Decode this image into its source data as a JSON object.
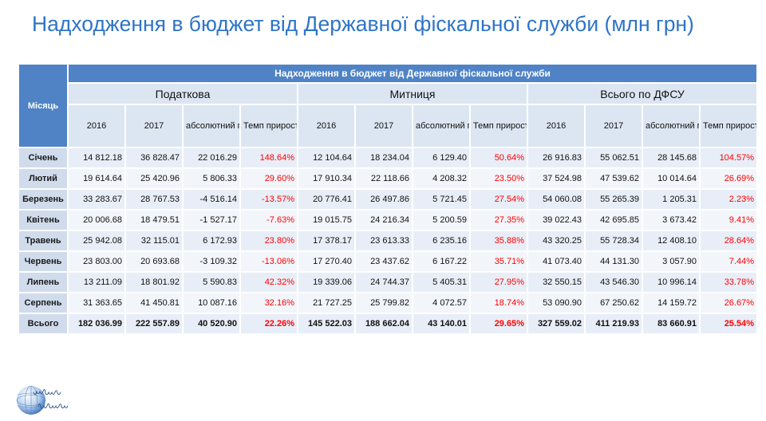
{
  "slide": {
    "title": "Надходження в бюджет від Державної фіскальної служби (млн грн)"
  },
  "table": {
    "caption": "Надходження в бюджет від Державної фіскальної служби",
    "row_header": "Місяць",
    "groups": [
      {
        "name": "Податкова",
        "columns": [
          "2016",
          "2017",
          "абсолютний\nприріст",
          "Темп\nприросту"
        ]
      },
      {
        "name": "Митниця",
        "columns": [
          "2016",
          "2017",
          "абсолютний\nприріст",
          "Темп\nприросту"
        ]
      },
      {
        "name": "Всього по ДФСУ",
        "columns": [
          "2016",
          "2017",
          "абсолютний\nприріст",
          "Темп\nприросту"
        ]
      }
    ],
    "rows": [
      {
        "month": "Січень",
        "cells": [
          "14 812.18",
          "36 828.47",
          "22 016.29",
          "148.64%",
          "12 104.64",
          "18 234.04",
          "6 129.40",
          "50.64%",
          "26 916.83",
          "55 062.51",
          "28 145.68",
          "104.57%"
        ]
      },
      {
        "month": "Лютий",
        "cells": [
          "19 614.64",
          "25 420.96",
          "5 806.33",
          "29.60%",
          "17 910.34",
          "22 118.66",
          "4 208.32",
          "23.50%",
          "37 524.98",
          "47 539.62",
          "10 014.64",
          "26.69%"
        ]
      },
      {
        "month": "Березень",
        "cells": [
          "33 283.67",
          "28 767.53",
          "-4 516.14",
          "-13.57%",
          "20 776.41",
          "26 497.86",
          "5 721.45",
          "27.54%",
          "54 060.08",
          "55 265.39",
          "1 205.31",
          "2.23%"
        ]
      },
      {
        "month": "Квітень",
        "cells": [
          "20 006.68",
          "18 479.51",
          "-1 527.17",
          "-7.63%",
          "19 015.75",
          "24 216.34",
          "5 200.59",
          "27.35%",
          "39 022.43",
          "42 695.85",
          "3 673.42",
          "9.41%"
        ]
      },
      {
        "month": "Травень",
        "cells": [
          "25 942.08",
          "32 115.01",
          "6 172.93",
          "23.80%",
          "17 378.17",
          "23 613.33",
          "6 235.16",
          "35.88%",
          "43 320.25",
          "55 728.34",
          "12 408.10",
          "28.64%"
        ]
      },
      {
        "month": "Червень",
        "cells": [
          "23 803.00",
          "20 693.68",
          "-3 109.32",
          "-13.06%",
          "17 270.40",
          "23 437.62",
          "6 167.22",
          "35.71%",
          "41 073.40",
          "44 131.30",
          "3 057.90",
          "7.44%"
        ]
      },
      {
        "month": "Липень",
        "cells": [
          "13 211.09",
          "18 801.92",
          "5 590.83",
          "42.32%",
          "19 339.06",
          "24 744.37",
          "5 405.31",
          "27.95%",
          "32 550.15",
          "43 546.30",
          "10 996.14",
          "33.78%"
        ]
      },
      {
        "month": "Серпень",
        "cells": [
          "31 363.65",
          "41 450.81",
          "10 087.16",
          "32.16%",
          "21 727.25",
          "25 799.82",
          "4 072.57",
          "18.74%",
          "53 090.90",
          "67 250.62",
          "14 159.72",
          "26.67%"
        ]
      },
      {
        "month": "Всього",
        "cells": [
          "182 036.99",
          "222 557.89",
          "40 520.90",
          "22.26%",
          "145 522.03",
          "188 662.04",
          "43 140.01",
          "29.65%",
          "327 559.02",
          "411 219.93",
          "83 660.91",
          "25.54%"
        ]
      }
    ]
  },
  "colors": {
    "title_text": "#2e74c8",
    "header_bg": "#4f83c6",
    "subheader_bg": "#dce6f2",
    "first_column_bg": "#d0dcec",
    "row_bg": "#e8eef7",
    "row_alt_bg": "#f2f5fa",
    "percent_text": "#ff0000"
  },
  "logo": {
    "icon": "globe-logo-icon"
  }
}
